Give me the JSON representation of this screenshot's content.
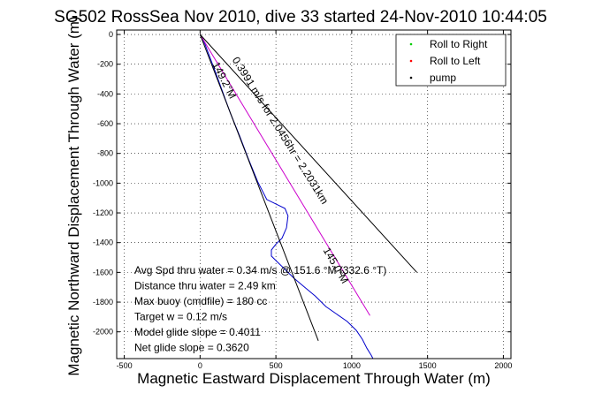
{
  "chart_data": {
    "type": "line",
    "title": "SG502 RossSea Nov 2010, dive 33 started 24-Nov-2010 10:44:05",
    "xlabel": "Magnetic Eastward Displacement Through Water (m)",
    "ylabel": "Magnetic Northward Displacement Through Water (m)",
    "xlim": [
      -550,
      2050
    ],
    "ylim": [
      -2180,
      30
    ],
    "xticks": [
      -500,
      0,
      500,
      1000,
      1500,
      2000
    ],
    "yticks": [
      0,
      -200,
      -400,
      -600,
      -800,
      -1000,
      -1200,
      -1400,
      -1600,
      -1800,
      -2000
    ],
    "grid": true,
    "legend_position": "top-right",
    "legend": [
      {
        "label": "Roll to Right",
        "color": "#00cc00",
        "marker": "dot"
      },
      {
        "label": "Roll to Left",
        "color": "#ff0000",
        "marker": "dot"
      },
      {
        "label": "pump",
        "color": "#000000",
        "marker": "dot"
      }
    ],
    "series": [
      {
        "color": "#0000cc",
        "points": [
          [
            0,
            0
          ],
          [
            30,
            -60
          ],
          [
            60,
            -140
          ],
          [
            100,
            -250
          ],
          [
            150,
            -390
          ],
          [
            200,
            -530
          ],
          [
            260,
            -680
          ],
          [
            320,
            -840
          ],
          [
            380,
            -990
          ],
          [
            440,
            -1110
          ],
          [
            500,
            -1140
          ],
          [
            560,
            -1170
          ],
          [
            580,
            -1220
          ],
          [
            570,
            -1300
          ],
          [
            540,
            -1370
          ],
          [
            500,
            -1410
          ],
          [
            470,
            -1450
          ],
          [
            470,
            -1490
          ],
          [
            510,
            -1530
          ],
          [
            560,
            -1580
          ],
          [
            620,
            -1640
          ],
          [
            690,
            -1700
          ],
          [
            760,
            -1760
          ],
          [
            830,
            -1830
          ],
          [
            900,
            -1880
          ],
          [
            970,
            -1930
          ],
          [
            1030,
            -1990
          ],
          [
            1070,
            -2050
          ],
          [
            1100,
            -2110
          ],
          [
            1130,
            -2160
          ],
          [
            1140,
            -2180
          ]
        ]
      },
      {
        "color": "#cc00cc",
        "points": [
          [
            0,
            0
          ],
          [
            1120,
            -1890
          ]
        ]
      },
      {
        "color": "#000000",
        "points": [
          [
            0,
            0
          ],
          [
            780,
            -2060
          ]
        ]
      },
      {
        "color": "#000000",
        "points": [
          [
            0,
            0
          ],
          [
            1430,
            -1600
          ]
        ]
      }
    ],
    "line_labels": [
      {
        "text": "0.3991 m/s for 2.0456hr = 2.2031km",
        "anchor": [
          210,
          -170
        ],
        "angle": 58
      },
      {
        "text": "149.2°M",
        "anchor": [
          80,
          -200
        ],
        "angle": 63
      },
      {
        "text": "145.0°M",
        "anchor": [
          810,
          -1450
        ],
        "angle": 60
      }
    ],
    "annotations": [
      "Avg Spd thru water = 0.34 m/s @ 151.6 °M (332.6 °T)",
      "Distance thru water = 2.49 km",
      "Max buoy (cmdfile) = 180 cc",
      "Target w = 0.12 m/s",
      "Model glide slope = 0.4011",
      "Net glide slope = 0.3620"
    ]
  }
}
